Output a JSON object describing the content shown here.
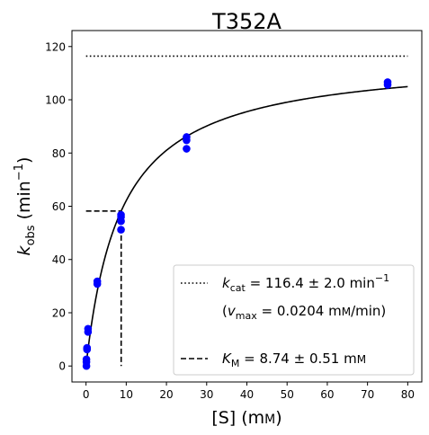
{
  "chart_data": {
    "type": "scatter",
    "title": "T352A",
    "xlabel": {
      "main": "[S] (m",
      "small": "M",
      "close": ")"
    },
    "ylabel": {
      "k": "k",
      "sub": "obs",
      "unit_open": " (min",
      "sup": "−1",
      "close": ")"
    },
    "xlim": [
      -3.5,
      83.5
    ],
    "ylim": [
      -6,
      126
    ],
    "x_ticks": [
      0,
      10,
      20,
      30,
      40,
      50,
      60,
      70,
      80
    ],
    "y_ticks": [
      0,
      20,
      40,
      60,
      80,
      100,
      120
    ],
    "colors": {
      "points": "#0000ff",
      "lines": "#000000"
    },
    "grid": false,
    "legend_position": "lower-right",
    "series": [
      {
        "kind": "points",
        "x": [
          0.1,
          0.1,
          0.1,
          0.25,
          0.25,
          0.5,
          0.5,
          2.8,
          2.8,
          8.7,
          8.7,
          8.7,
          8.7,
          25,
          25,
          25,
          75,
          75
        ],
        "y": [
          0,
          1.5,
          2.5,
          6.2,
          6.8,
          12.8,
          14,
          30.8,
          31.8,
          51.2,
          54.4,
          56,
          56.8,
          81.6,
          84.8,
          86,
          105.6,
          106.6
        ]
      },
      {
        "kind": "fit",
        "function": "michaelis-menten",
        "kcat": 116.4,
        "km": 8.74,
        "x_range": [
          0,
          80
        ]
      },
      {
        "kind": "kcat-line",
        "y": 116.4,
        "x_range": [
          0,
          80
        ]
      },
      {
        "kind": "km-guide",
        "x": 8.74,
        "y": 58.2
      }
    ],
    "legend": {
      "entries": [
        {
          "style": "dotted",
          "symbol": "k",
          "sub": "cat",
          "text": " = 116.4 ± 2.0 min",
          "sup": "−1"
        },
        {
          "style": "none",
          "open": "(",
          "symbol": "v",
          "sub": "max",
          "text": " = 0.0204 m",
          "small": "M",
          "close": "/min)"
        },
        {
          "style": "dashed",
          "symbol": "K",
          "sub": "M",
          "text": " = 8.74 ± 0.51 m",
          "small": "M"
        }
      ]
    }
  }
}
